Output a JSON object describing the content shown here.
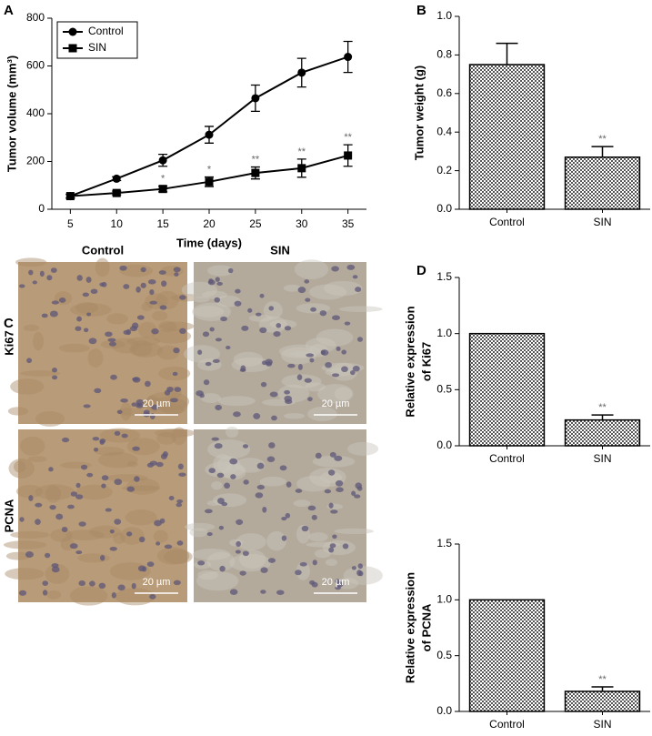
{
  "panel_labels": [
    "A",
    "B",
    "C",
    "D"
  ],
  "chart_data": [
    {
      "type": "line",
      "xlabel": "Time (days)",
      "ylabel": [
        "Tumor volume (mm³)"
      ],
      "x": [
        5,
        10,
        15,
        20,
        25,
        30,
        35
      ],
      "xlim": [
        3,
        37
      ],
      "xticks": [
        5,
        10,
        15,
        20,
        25,
        30,
        35
      ],
      "ylim": [
        0,
        800
      ],
      "yticks": [
        0,
        200,
        400,
        600,
        800
      ],
      "legend": "upper left",
      "series": [
        {
          "name": "Control",
          "color": "#000000",
          "marker": "circle",
          "values": [
            55,
            128,
            205,
            312,
            465,
            572,
            638
          ],
          "errors": [
            8,
            8,
            25,
            35,
            55,
            60,
            65
          ]
        },
        {
          "name": "SIN",
          "color": "#000000",
          "marker": "square",
          "values": [
            55,
            68,
            85,
            115,
            152,
            172,
            225
          ],
          "errors": [
            8,
            8,
            12,
            20,
            25,
            38,
            45
          ],
          "significance": [
            null,
            null,
            "*",
            "*",
            "**",
            "**",
            "**"
          ]
        }
      ]
    },
    {
      "type": "bar",
      "ylabel": [
        "Tumor weight (g)"
      ],
      "categories": [
        "Control",
        "SIN"
      ],
      "values": [
        0.75,
        0.27
      ],
      "errors": [
        0.11,
        0.055
      ],
      "significance": [
        null,
        "**"
      ],
      "color": "#555555",
      "ylim": [
        0,
        1
      ],
      "yticks": [
        {
          "value": 0,
          "label": "0.0"
        },
        0.2,
        0.4,
        0.6,
        0.8,
        {
          "value": 1,
          "label": "1.0"
        }
      ]
    },
    {
      "type": "bar",
      "ylabel": [
        "Relative expression",
        "of  Ki67"
      ],
      "categories": [
        "Control",
        "SIN"
      ],
      "values": [
        1.0,
        0.23
      ],
      "errors": [
        0,
        0.045
      ],
      "significance": [
        null,
        "**"
      ],
      "color": "#555555",
      "ylim": [
        0,
        1.5
      ],
      "yticks": [
        {
          "value": 0,
          "label": "0.0"
        },
        0.5,
        {
          "value": 1,
          "label": "1.0"
        },
        1.5
      ]
    },
    {
      "type": "bar",
      "ylabel": [
        "Relative expression",
        "of PCNA"
      ],
      "categories": [
        "Control",
        "SIN"
      ],
      "values": [
        1.0,
        0.18
      ],
      "errors": [
        0,
        0.04
      ],
      "significance": [
        null,
        "**"
      ],
      "color": "#555555",
      "ylim": [
        0,
        1.5
      ],
      "yticks": [
        {
          "value": 0,
          "label": "0.0"
        },
        0.5,
        {
          "value": 1,
          "label": "1.0"
        },
        1.5
      ]
    }
  ],
  "panel_c": {
    "columns": [
      "Control",
      "SIN"
    ],
    "rows": [
      "Ki67",
      "PCNA"
    ],
    "scale_bar": "20 µm"
  }
}
